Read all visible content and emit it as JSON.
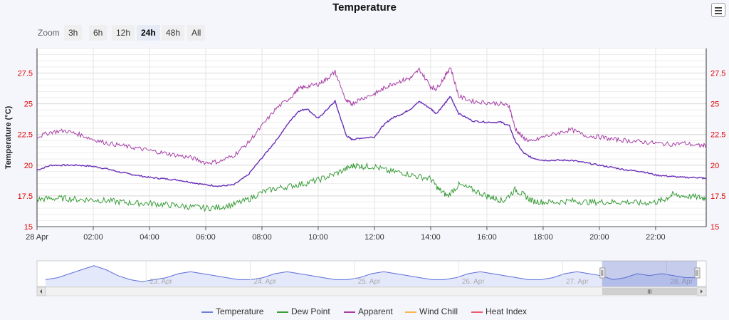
{
  "title": "Temperature",
  "menu_icon": "hamburger-menu-icon",
  "zoom": {
    "label": "Zoom",
    "options": [
      "3h",
      "6h",
      "12h",
      "24h",
      "48h",
      "All"
    ],
    "selected": "24h"
  },
  "chart_data": {
    "type": "line",
    "title": "Temperature",
    "ylabel": "Temperature (°C)",
    "xlabel": "",
    "ylim": [
      15,
      29.5
    ],
    "yticks": [
      15,
      17.5,
      20,
      22.5,
      25,
      27.5
    ],
    "ytick_labels": [
      "15",
      "17.5",
      "20",
      "22.5",
      "25",
      "27.5"
    ],
    "x_range_hours": [
      0,
      23.8
    ],
    "xtick_labels": [
      "28 Apr",
      "02:00",
      "04:00",
      "06:00",
      "08:00",
      "10:00",
      "12:00",
      "14:00",
      "16:00",
      "18:00",
      "20:00",
      "22:00"
    ],
    "xticks_hours": [
      0,
      2,
      4,
      6,
      8,
      10,
      12,
      14,
      16,
      18,
      20,
      22
    ],
    "grid": true,
    "legend_position": "bottom-center",
    "series": [
      {
        "name": "Temperature",
        "color": "#6a2fb8",
        "x": [
          0,
          0.5,
          1,
          1.5,
          2,
          2.5,
          3,
          3.5,
          4,
          4.5,
          5,
          5.5,
          6,
          6.5,
          7,
          7.5,
          8,
          8.5,
          9,
          9.3,
          9.6,
          10,
          10.3,
          10.6,
          11,
          11.2,
          11.5,
          12,
          12.3,
          12.6,
          13,
          13.3,
          13.6,
          14,
          14.2,
          14.5,
          14.7,
          15,
          15.5,
          16,
          16.5,
          16.8,
          17,
          17.3,
          17.6,
          18,
          18.5,
          19,
          19.5,
          20,
          20.5,
          21,
          21.5,
          22,
          22.5,
          23,
          23.5,
          23.8
        ],
        "y": [
          19.6,
          20,
          20,
          20,
          19.9,
          19.7,
          19.4,
          19.2,
          19,
          18.9,
          18.8,
          18.6,
          18.4,
          18.3,
          18.4,
          19.2,
          20.6,
          22,
          23.6,
          24.4,
          24.6,
          23.8,
          24.5,
          25.2,
          22.4,
          22.1,
          22.2,
          22.3,
          23.2,
          23.8,
          24.2,
          24.6,
          25.2,
          24.6,
          24.2,
          25,
          25.6,
          24.2,
          23.6,
          23.5,
          23.5,
          23.2,
          22,
          21,
          20.6,
          20.4,
          20.4,
          20.4,
          20.2,
          20,
          19.8,
          19.6,
          19.5,
          19.2,
          19.1,
          19,
          19,
          18.9
        ]
      },
      {
        "name": "Dew Point",
        "color": "#3a9d3a",
        "x": [
          0,
          0.5,
          1,
          1.5,
          2,
          2.5,
          3,
          3.5,
          4,
          4.5,
          5,
          5.5,
          6,
          6.5,
          7,
          7.5,
          8,
          8.5,
          9,
          9.5,
          10,
          10.5,
          11,
          11.3,
          11.6,
          12,
          12.5,
          13,
          13.5,
          14,
          14.3,
          14.6,
          15,
          15.5,
          16,
          16.3,
          16.6,
          17,
          17.3,
          17.6,
          18,
          18.5,
          19,
          19.5,
          20,
          20.5,
          21,
          21.5,
          22,
          22.3,
          22.6,
          23,
          23.5,
          23.8
        ],
        "y": [
          17.2,
          17.3,
          17.3,
          17.2,
          17.2,
          17.1,
          17,
          16.9,
          16.9,
          16.8,
          16.7,
          16.6,
          16.5,
          16.6,
          16.8,
          17.2,
          17.8,
          18.1,
          18.3,
          18.5,
          18.8,
          19.2,
          19.7,
          20,
          19.9,
          19.9,
          19.5,
          19.4,
          19.1,
          18.9,
          18,
          17.5,
          18.4,
          18,
          17.5,
          17.3,
          17.1,
          18,
          17.6,
          17.1,
          17,
          17,
          17.1,
          17,
          17,
          17,
          17,
          16.9,
          17,
          17.2,
          17.6,
          17.5,
          17.4,
          17.3
        ]
      },
      {
        "name": "Apparent",
        "color": "#a73ea7",
        "x": [
          0,
          0.5,
          1,
          1.5,
          2,
          2.5,
          3,
          3.5,
          4,
          4.5,
          5,
          5.5,
          6,
          6.5,
          7,
          7.5,
          8,
          8.5,
          9,
          9.3,
          9.6,
          10,
          10.3,
          10.6,
          11,
          11.2,
          11.5,
          12,
          12.3,
          12.6,
          13,
          13.3,
          13.6,
          14,
          14.2,
          14.5,
          14.7,
          15,
          15.5,
          16,
          16.5,
          16.8,
          17,
          17.3,
          17.6,
          18,
          18.5,
          19,
          19.5,
          20,
          20.5,
          21,
          21.5,
          22,
          22.5,
          23,
          23.5,
          23.8
        ],
        "y": [
          22.3,
          22.7,
          22.8,
          22.5,
          22.1,
          21.8,
          21.6,
          21.4,
          21.2,
          21,
          20.8,
          20.6,
          20.2,
          20.3,
          20.8,
          21.8,
          23.2,
          24.6,
          25.5,
          26.2,
          26.4,
          26.6,
          27,
          27.6,
          25.2,
          25,
          25.4,
          25.8,
          26.2,
          26.6,
          26.9,
          27.1,
          27.8,
          26.4,
          26.2,
          27.2,
          28,
          25.6,
          25.2,
          25.1,
          25.0,
          24.8,
          23,
          22.2,
          21.9,
          22.3,
          22.6,
          22.9,
          22.4,
          22.3,
          22.1,
          22,
          21.9,
          21.8,
          21.7,
          21.8,
          21.6,
          21.6
        ]
      },
      {
        "name": "Wind Chill",
        "color": "#f7b84e",
        "x": [],
        "y": []
      },
      {
        "name": "Heat Index",
        "color": "#f05a6e",
        "x": [],
        "y": []
      }
    ],
    "navigator": {
      "labels": [
        "23. Apr",
        "24. Apr",
        "25. Apr",
        "26. Apr",
        "27. Apr",
        "28. Apr"
      ],
      "days": 6.3,
      "selected_range_days": [
        5.3,
        6.3
      ],
      "values": [
        18,
        19,
        21,
        23,
        25,
        23,
        20,
        18,
        17,
        18,
        19,
        21,
        22,
        21,
        20,
        19,
        18,
        18,
        19,
        21,
        22,
        21,
        20,
        19,
        18,
        18,
        19,
        21,
        22,
        21,
        20,
        19,
        18,
        18,
        19,
        21,
        22,
        21,
        20,
        19,
        18,
        18,
        19,
        21,
        22,
        21,
        20,
        18,
        19,
        21,
        20,
        21,
        20,
        19,
        19
      ]
    }
  }
}
